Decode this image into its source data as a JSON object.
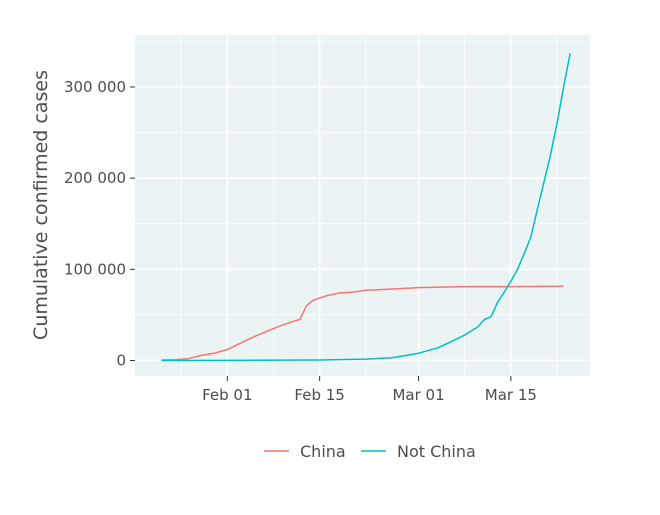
{
  "chart_data": {
    "type": "line",
    "title": "",
    "xlabel": "",
    "ylabel": "Cumulative confirmed cases",
    "x_tick_labels": [
      "Feb 01",
      "Feb 15",
      "Mar 01",
      "Mar 15"
    ],
    "x_tick_dates": [
      "2020-02-01",
      "2020-02-15",
      "2020-03-01",
      "2020-03-15"
    ],
    "xlim": [
      "2020-01-18",
      "2020-03-27"
    ],
    "y_tick_labels": [
      "0",
      "100 000",
      "200 000",
      "300 000"
    ],
    "y_ticks": [
      0,
      100000,
      200000,
      300000
    ],
    "ylim": [
      -17000,
      357000
    ],
    "grid": true,
    "legend_position": "bottom",
    "series": [
      {
        "name": "China",
        "color": "#F8766D",
        "points": [
          [
            "2020-01-22",
            548
          ],
          [
            "2020-01-24",
            916
          ],
          [
            "2020-01-26",
            2000
          ],
          [
            "2020-01-28",
            5500
          ],
          [
            "2020-01-30",
            8000
          ],
          [
            "2020-02-01",
            12000
          ],
          [
            "2020-02-03",
            19000
          ],
          [
            "2020-02-05",
            26000
          ],
          [
            "2020-02-07",
            32000
          ],
          [
            "2020-02-09",
            38000
          ],
          [
            "2020-02-11",
            43000
          ],
          [
            "2020-02-12",
            45000
          ],
          [
            "2020-02-13",
            60000
          ],
          [
            "2020-02-14",
            66000
          ],
          [
            "2020-02-16",
            71000
          ],
          [
            "2020-02-18",
            74000
          ],
          [
            "2020-02-20",
            75000
          ],
          [
            "2020-02-22",
            77000
          ],
          [
            "2020-02-25",
            78000
          ],
          [
            "2020-03-01",
            80000
          ],
          [
            "2020-03-08",
            81000
          ],
          [
            "2020-03-15",
            81000
          ],
          [
            "2020-03-23",
            81500
          ]
        ]
      },
      {
        "name": "Not China",
        "color": "#00BFC4",
        "points": [
          [
            "2020-01-22",
            8
          ],
          [
            "2020-02-01",
            150
          ],
          [
            "2020-02-15",
            600
          ],
          [
            "2020-02-22",
            1500
          ],
          [
            "2020-02-26",
            3000
          ],
          [
            "2020-03-01",
            8000
          ],
          [
            "2020-03-04",
            14000
          ],
          [
            "2020-03-06",
            21000
          ],
          [
            "2020-03-08",
            28000
          ],
          [
            "2020-03-10",
            37000
          ],
          [
            "2020-03-11",
            45000
          ],
          [
            "2020-03-12",
            48000
          ],
          [
            "2020-03-13",
            64000
          ],
          [
            "2020-03-14",
            75000
          ],
          [
            "2020-03-15",
            87000
          ],
          [
            "2020-03-16",
            100000
          ],
          [
            "2020-03-17",
            117000
          ],
          [
            "2020-03-18",
            135000
          ],
          [
            "2020-03-19",
            165000
          ],
          [
            "2020-03-20",
            195000
          ],
          [
            "2020-03-21",
            225000
          ],
          [
            "2020-03-22",
            260000
          ],
          [
            "2020-03-23",
            300000
          ],
          [
            "2020-03-24",
            337000
          ]
        ]
      }
    ]
  }
}
